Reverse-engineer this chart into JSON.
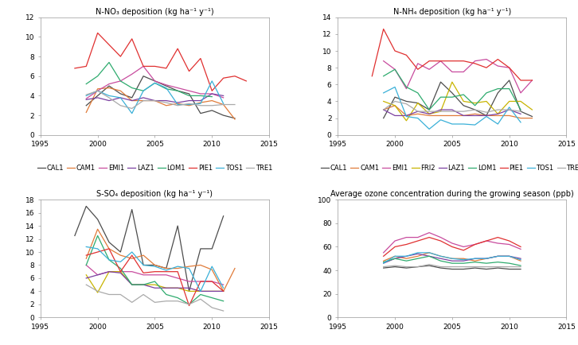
{
  "panel1": {
    "title": "N-NO₃ deposition (kg ha⁻¹ y⁻¹)",
    "ylim": [
      0,
      12
    ],
    "yticks": [
      0,
      2,
      4,
      6,
      8,
      10,
      12
    ],
    "series": {
      "CAL1": {
        "color": "#4d4d4d",
        "data": [
          null,
          3.0,
          4.0,
          5.0,
          4.2,
          3.8,
          6.0,
          5.5,
          5.0,
          4.5,
          4.2,
          2.2,
          2.5,
          2.0,
          1.7,
          null
        ]
      },
      "CAM1": {
        "color": "#e07b39",
        "data": [
          null,
          2.3,
          4.7,
          4.8,
          4.5,
          3.5,
          3.5,
          3.5,
          3.0,
          3.2,
          3.0,
          3.3,
          3.5,
          3.1,
          1.6,
          null
        ]
      },
      "EMI1": {
        "color": "#c84b9e",
        "data": [
          null,
          3.7,
          4.5,
          5.2,
          5.5,
          6.2,
          7.0,
          5.5,
          5.1,
          4.8,
          4.5,
          4.2,
          4.2,
          3.8,
          null,
          null
        ]
      },
      "LAZ1": {
        "color": "#7b3fa0",
        "data": [
          null,
          3.6,
          3.8,
          3.5,
          3.8,
          3.5,
          3.8,
          3.5,
          3.5,
          3.3,
          3.5,
          3.5,
          4.2,
          4.0,
          null,
          null
        ]
      },
      "LOM1": {
        "color": "#2eab6e",
        "data": [
          null,
          5.2,
          6.0,
          7.4,
          5.5,
          4.8,
          4.5,
          5.3,
          4.7,
          4.5,
          4.0,
          4.0,
          3.9,
          null,
          null,
          null
        ]
      },
      "PIE1": {
        "color": "#e03030",
        "data": [
          6.8,
          7.0,
          10.4,
          9.2,
          8.0,
          9.8,
          7.0,
          7.0,
          6.8,
          8.8,
          6.5,
          7.8,
          4.5,
          5.8,
          6.0,
          5.5
        ]
      },
      "TOS1": {
        "color": "#3ab0d8",
        "data": [
          null,
          4.0,
          4.5,
          4.0,
          3.8,
          2.2,
          4.5,
          5.3,
          4.8,
          3.1,
          3.1,
          3.2,
          5.5,
          3.2,
          null,
          null
        ]
      },
      "TRE1": {
        "color": "#aaaaaa",
        "data": [
          null,
          4.1,
          4.5,
          3.8,
          3.0,
          2.7,
          3.5,
          3.5,
          3.3,
          3.0,
          3.2,
          3.0,
          3.0,
          3.1,
          3.1,
          null
        ]
      }
    }
  },
  "panel2": {
    "title": "N-NH₄ deposition (kg ha⁻¹ y⁻¹)",
    "ylim": [
      0,
      14
    ],
    "yticks": [
      0,
      2,
      4,
      6,
      8,
      10,
      12,
      14
    ],
    "series": {
      "CAL1": {
        "color": "#4d4d4d",
        "data": [
          null,
          2.0,
          4.5,
          4.0,
          3.8,
          3.0,
          6.3,
          5.0,
          3.5,
          3.0,
          2.3,
          5.0,
          6.5,
          2.8,
          2.2,
          null
        ]
      },
      "CAM1": {
        "color": "#e07b39",
        "data": [
          null,
          3.0,
          3.5,
          2.3,
          2.5,
          2.3,
          2.3,
          2.3,
          2.3,
          2.5,
          2.3,
          2.3,
          2.3,
          2.0,
          2.0,
          null
        ]
      },
      "EMI1": {
        "color": "#c84b9e",
        "data": [
          null,
          8.8,
          7.8,
          5.5,
          8.5,
          7.8,
          8.8,
          7.5,
          7.5,
          8.8,
          9.0,
          8.2,
          8.0,
          5.0,
          6.5,
          null
        ]
      },
      "FRI2": {
        "color": "#c8b400",
        "data": [
          null,
          4.0,
          3.5,
          1.7,
          3.8,
          2.5,
          2.8,
          6.3,
          4.0,
          3.8,
          4.0,
          2.5,
          4.0,
          4.0,
          3.0,
          null
        ]
      },
      "LAZ1": {
        "color": "#7b3fa0",
        "data": [
          null,
          3.0,
          2.3,
          2.3,
          2.8,
          2.5,
          3.0,
          3.0,
          2.3,
          2.3,
          2.3,
          2.5,
          3.0,
          2.5,
          null,
          null
        ]
      },
      "LOM1": {
        "color": "#2eab6e",
        "data": [
          null,
          7.0,
          7.8,
          5.7,
          5.0,
          3.0,
          4.5,
          4.5,
          4.8,
          3.5,
          5.0,
          5.5,
          5.5,
          3.0,
          null,
          null
        ]
      },
      "PIE1": {
        "color": "#e03030",
        "data": [
          7.0,
          12.6,
          10.0,
          9.5,
          7.8,
          8.8,
          8.8,
          8.8,
          8.8,
          8.5,
          8.0,
          9.0,
          8.0,
          6.5,
          6.5,
          null
        ]
      },
      "TOS1": {
        "color": "#3ab0d8",
        "data": [
          null,
          5.0,
          5.7,
          2.2,
          2.0,
          0.7,
          1.8,
          1.3,
          1.3,
          1.2,
          2.2,
          1.3,
          3.3,
          1.5,
          null,
          null
        ]
      },
      "TRE1": {
        "color": "#aaaaaa",
        "data": [
          null,
          3.0,
          4.0,
          3.7,
          2.8,
          2.8,
          2.8,
          2.8,
          2.8,
          3.0,
          2.7,
          3.0,
          3.0,
          2.8,
          null,
          null
        ]
      }
    }
  },
  "panel3": {
    "title": "S-SO₄ deposition (kg ha⁻¹ y⁻¹)",
    "ylim": [
      0,
      18
    ],
    "yticks": [
      0,
      2,
      4,
      6,
      8,
      10,
      12,
      14,
      16,
      18
    ],
    "series": {
      "CAL1": {
        "color": "#4d4d4d",
        "data": [
          12.5,
          17.0,
          15.0,
          11.5,
          10.0,
          16.5,
          8.0,
          8.0,
          7.5,
          14.0,
          4.0,
          10.5,
          10.5,
          15.5,
          null,
          null
        ]
      },
      "CAM1": {
        "color": "#e07b39",
        "data": [
          null,
          9.0,
          13.5,
          10.5,
          9.5,
          9.0,
          9.5,
          8.0,
          7.5,
          7.5,
          7.8,
          8.0,
          7.3,
          4.0,
          7.5,
          null
        ]
      },
      "EMI1": {
        "color": "#c84b9e",
        "data": [
          null,
          8.0,
          6.5,
          7.0,
          7.0,
          7.0,
          6.5,
          6.5,
          6.5,
          6.0,
          5.5,
          5.5,
          5.5,
          5.0,
          null,
          null
        ]
      },
      "FRI2": {
        "color": "#c8b400",
        "data": [
          null,
          6.5,
          3.8,
          7.0,
          7.0,
          5.0,
          5.0,
          5.0,
          4.5,
          4.5,
          4.0,
          4.0,
          4.0,
          4.0,
          null,
          null
        ]
      },
      "LAZ1": {
        "color": "#7b3fa0",
        "data": [
          null,
          6.0,
          6.5,
          7.0,
          6.8,
          5.0,
          5.0,
          4.5,
          4.5,
          4.5,
          4.5,
          4.0,
          4.0,
          4.0,
          null,
          null
        ]
      },
      "LOM1": {
        "color": "#2eab6e",
        "data": [
          null,
          8.0,
          12.5,
          8.8,
          7.5,
          5.0,
          5.0,
          5.5,
          3.5,
          3.0,
          2.0,
          3.5,
          3.0,
          2.5,
          null,
          null
        ]
      },
      "PIE1": {
        "color": "#e03030",
        "data": [
          null,
          9.5,
          10.0,
          10.5,
          7.0,
          9.5,
          6.8,
          7.0,
          7.0,
          7.0,
          1.8,
          5.5,
          5.5,
          4.0,
          null,
          null
        ]
      },
      "TOS1": {
        "color": "#3ab0d8",
        "data": [
          null,
          10.8,
          10.5,
          8.8,
          8.5,
          10.0,
          8.0,
          7.8,
          7.2,
          7.8,
          7.5,
          4.0,
          7.8,
          4.5,
          null,
          null
        ]
      },
      "TRE1": {
        "color": "#aaaaaa",
        "data": [
          null,
          5.0,
          4.0,
          3.5,
          3.5,
          2.3,
          3.5,
          2.3,
          2.5,
          2.5,
          2.0,
          2.8,
          1.5,
          1.0,
          null,
          null
        ]
      }
    }
  },
  "panel4": {
    "title": "Average ozone concentration during the growing season (ppb)",
    "ylim": [
      0,
      100
    ],
    "yticks": [
      0,
      20,
      40,
      60,
      80,
      100
    ],
    "series": {
      "CAL1": {
        "color": "#4d4d4d",
        "data": [
          null,
          42,
          43,
          42,
          43,
          44,
          42,
          41,
          41,
          42,
          41,
          42,
          41,
          41,
          null,
          null
        ]
      },
      "CAM1": {
        "color": "#e07b39",
        "data": [
          null,
          48,
          52,
          50,
          52,
          55,
          52,
          50,
          50,
          48,
          50,
          52,
          52,
          48,
          null,
          null
        ]
      },
      "EMI1": {
        "color": "#c84b9e",
        "data": [
          null,
          55,
          65,
          68,
          68,
          72,
          68,
          63,
          60,
          62,
          65,
          63,
          62,
          58,
          null,
          null
        ]
      },
      "LAZ1": {
        "color": "#7b3fa0",
        "data": [
          null,
          46,
          50,
          52,
          54,
          52,
          50,
          48,
          48,
          50,
          50,
          52,
          52,
          50,
          null,
          null
        ]
      },
      "LOM1": {
        "color": "#2eab6e",
        "data": [
          null,
          47,
          50,
          48,
          50,
          52,
          48,
          46,
          46,
          47,
          46,
          47,
          46,
          44,
          null,
          null
        ]
      },
      "PIE1": {
        "color": "#e03030",
        "data": [
          null,
          52,
          60,
          62,
          65,
          68,
          65,
          60,
          57,
          62,
          65,
          68,
          65,
          60,
          null,
          null
        ]
      },
      "TOS1": {
        "color": "#3ab0d8",
        "data": [
          null,
          46,
          52,
          52,
          55,
          55,
          52,
          50,
          49,
          50,
          50,
          52,
          52,
          49,
          null,
          null
        ]
      },
      "TRE1": {
        "color": "#aaaaaa",
        "data": [
          null,
          43,
          44,
          43,
          43,
          45,
          43,
          43,
          43,
          43,
          43,
          43,
          43,
          43,
          null,
          null
        ]
      }
    }
  },
  "years": [
    1998,
    1999,
    2000,
    2001,
    2002,
    2003,
    2004,
    2005,
    2006,
    2007,
    2008,
    2009,
    2010,
    2011,
    2012,
    2013
  ],
  "xlim": [
    1995,
    2015
  ],
  "xticks": [
    1995,
    2000,
    2005,
    2010,
    2015
  ],
  "linewidth": 0.9,
  "bg_color": "#ffffff",
  "legend_fontsize": 6.0
}
